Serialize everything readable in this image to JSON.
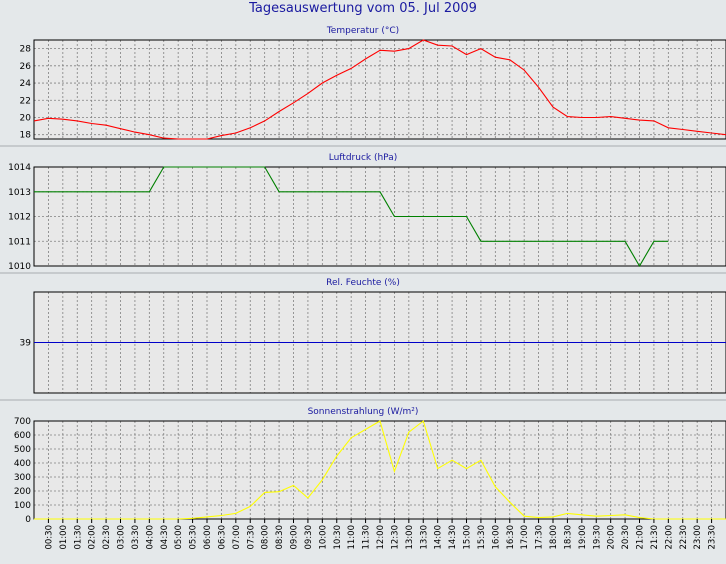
{
  "title": "Tagesauswertung vom 05. Jul 2009",
  "x_labels": [
    "00:30",
    "01:00",
    "01:30",
    "02:00",
    "02:30",
    "03:00",
    "03:30",
    "04:00",
    "04:30",
    "05:00",
    "05:30",
    "06:00",
    "06:30",
    "07:00",
    "07:30",
    "08:00",
    "08:30",
    "09:00",
    "09:30",
    "10:00",
    "10:30",
    "11:00",
    "11:30",
    "12:00",
    "12:30",
    "13:00",
    "13:30",
    "14:00",
    "14:30",
    "15:00",
    "15:30",
    "16:00",
    "16:30",
    "17:00",
    "17:30",
    "18:00",
    "18:30",
    "19:00",
    "19:30",
    "20:00",
    "20:30",
    "21:00",
    "21:30",
    "22:00",
    "22:30",
    "23:00",
    "23:30"
  ],
  "colors": {
    "background": "#e4e8ea",
    "plot_bg": "#e8e8e8",
    "grid": "#808080",
    "temperature": "#ff0000",
    "pressure": "#008000",
    "humidity": "#0000c8",
    "solar": "#ffff00",
    "title_text": "#1a1aa0"
  },
  "chart_data": [
    {
      "type": "line",
      "title": "Temperatur (°C)",
      "ylim": [
        17.5,
        29
      ],
      "yticks": [
        18,
        20,
        22,
        24,
        26,
        28
      ],
      "x": [
        0,
        0.5,
        1,
        1.5,
        2,
        2.5,
        3,
        3.5,
        4,
        4.5,
        5,
        5.5,
        6,
        6.5,
        7,
        7.5,
        8,
        8.5,
        9,
        9.5,
        10,
        10.5,
        11,
        11.5,
        12,
        12.5,
        13,
        13.5,
        14,
        14.5,
        15,
        15.5,
        16,
        16.5,
        17,
        17.5,
        18,
        18.5,
        19,
        19.5,
        20,
        20.5,
        21,
        21.5,
        22,
        22.5,
        23,
        23.5,
        24
      ],
      "y": [
        19.6,
        19.9,
        19.8,
        19.6,
        19.3,
        19.1,
        18.7,
        18.3,
        18.0,
        17.6,
        17.2,
        17.3,
        17.5,
        17.9,
        18.2,
        18.8,
        19.6,
        20.7,
        21.7,
        22.8,
        24.0,
        24.9,
        25.7,
        26.8,
        27.8,
        27.7,
        28.0,
        29.0,
        28.4,
        28.3,
        27.3,
        28.0,
        27.0,
        26.7,
        25.5,
        23.5,
        21.2,
        20.1,
        20.0,
        20.0,
        20.1,
        19.9,
        19.7,
        19.6,
        18.8,
        18.6,
        18.4,
        18.2,
        18.0
      ],
      "grid": true
    },
    {
      "type": "line",
      "title": "Luftdruck (hPa)",
      "ylim": [
        1010,
        1014
      ],
      "yticks": [
        1010,
        1011,
        1012,
        1013,
        1014
      ],
      "x": [
        0,
        4.0,
        4.5,
        8.0,
        8.5,
        12.0,
        12.5,
        15.0,
        15.5,
        20.5,
        21.0,
        21.5,
        22.0
      ],
      "y": [
        1013,
        1013,
        1014,
        1014,
        1013,
        1013,
        1012,
        1012,
        1011,
        1011,
        1010,
        1011,
        1011
      ],
      "grid": true
    },
    {
      "type": "line",
      "title": "Rel. Feuchte (%)",
      "ylim": [
        38,
        40
      ],
      "yticks": [
        39
      ],
      "x": [
        0,
        24
      ],
      "y": [
        39,
        39
      ],
      "grid": true
    },
    {
      "type": "line",
      "title": "Sonnenstrahlung (W/m²)",
      "ylim": [
        0,
        700
      ],
      "yticks": [
        0,
        100,
        200,
        300,
        400,
        500,
        600,
        700
      ],
      "x": [
        0,
        1,
        2,
        3,
        4,
        5,
        5.5,
        6,
        6.5,
        7,
        7.5,
        8,
        8.5,
        9,
        9.5,
        10,
        10.5,
        11,
        11.5,
        12,
        12.5,
        13,
        13.5,
        14,
        14.5,
        15,
        15.5,
        16,
        16.5,
        17,
        17.5,
        18,
        18.5,
        19,
        19.5,
        20,
        20.5,
        21,
        21.5,
        22,
        23,
        24
      ],
      "y": [
        0,
        0,
        0,
        0,
        0,
        0,
        5,
        15,
        25,
        40,
        90,
        190,
        195,
        240,
        150,
        280,
        450,
        580,
        640,
        700,
        340,
        620,
        700,
        360,
        420,
        360,
        420,
        230,
        120,
        20,
        10,
        15,
        40,
        30,
        20,
        25,
        30,
        10,
        0,
        0,
        0,
        0
      ],
      "grid": true
    }
  ]
}
